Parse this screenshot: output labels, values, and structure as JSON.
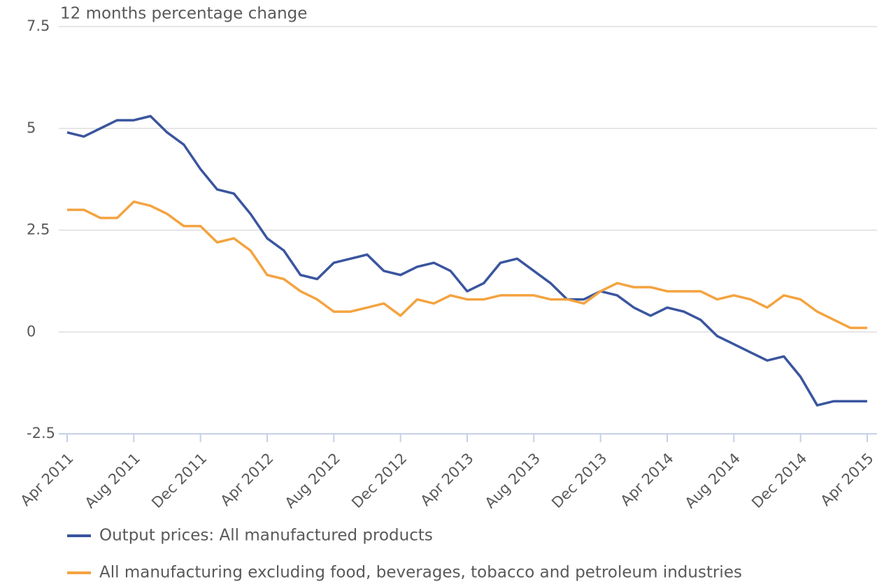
{
  "chart_data": {
    "type": "line",
    "title": "12 months percentage change",
    "categories": [
      "Apr 2011",
      null,
      null,
      null,
      "Aug 2011",
      null,
      null,
      null,
      "Dec 2011",
      null,
      null,
      null,
      "Apr 2012",
      null,
      null,
      null,
      "Aug 2012",
      null,
      null,
      null,
      "Dec 2012",
      null,
      null,
      null,
      "Apr 2013",
      null,
      null,
      null,
      "Aug 2013",
      null,
      null,
      null,
      "Dec 2013",
      null,
      null,
      null,
      "Apr 2014",
      null,
      null,
      null,
      "Aug 2014",
      null,
      null,
      null,
      "Dec 2014",
      null,
      null,
      null,
      "Apr 2015"
    ],
    "series": [
      {
        "name": "Output prices: All manufactured products",
        "color": "#3a559f",
        "values": [
          4.9,
          4.8,
          5.0,
          5.2,
          5.2,
          5.3,
          4.9,
          4.6,
          4.0,
          3.5,
          3.4,
          2.9,
          2.3,
          2.0,
          1.4,
          1.3,
          1.7,
          1.8,
          1.9,
          1.5,
          1.4,
          1.6,
          1.7,
          1.5,
          1.0,
          1.2,
          1.7,
          1.8,
          1.5,
          1.2,
          0.8,
          0.8,
          1.0,
          0.9,
          0.6,
          0.4,
          0.6,
          0.5,
          0.3,
          -0.1,
          -0.3,
          -0.5,
          -0.7,
          -0.6,
          -1.1,
          -1.8,
          -1.7,
          -1.7,
          -1.7
        ]
      },
      {
        "name": "All manufacturing excluding food, beverages, tobacco and petroleum industries",
        "color": "#f4a340",
        "values": [
          3.0,
          3.0,
          2.8,
          2.8,
          3.2,
          3.1,
          2.9,
          2.6,
          2.6,
          2.2,
          2.3,
          2.0,
          1.4,
          1.3,
          1.0,
          0.8,
          0.5,
          0.5,
          0.6,
          0.7,
          0.4,
          0.8,
          0.7,
          0.9,
          0.8,
          0.8,
          0.9,
          0.9,
          0.9,
          0.8,
          0.8,
          0.7,
          1.0,
          1.2,
          1.1,
          1.1,
          1.0,
          1.0,
          1.0,
          0.8,
          0.9,
          0.8,
          0.6,
          0.9,
          0.8,
          0.5,
          0.3,
          0.1,
          0.1
        ]
      }
    ],
    "ylim": [
      -2.5,
      7.5
    ],
    "yticks": [
      7.5,
      5,
      2.5,
      0,
      -2.5
    ],
    "grid": true
  }
}
